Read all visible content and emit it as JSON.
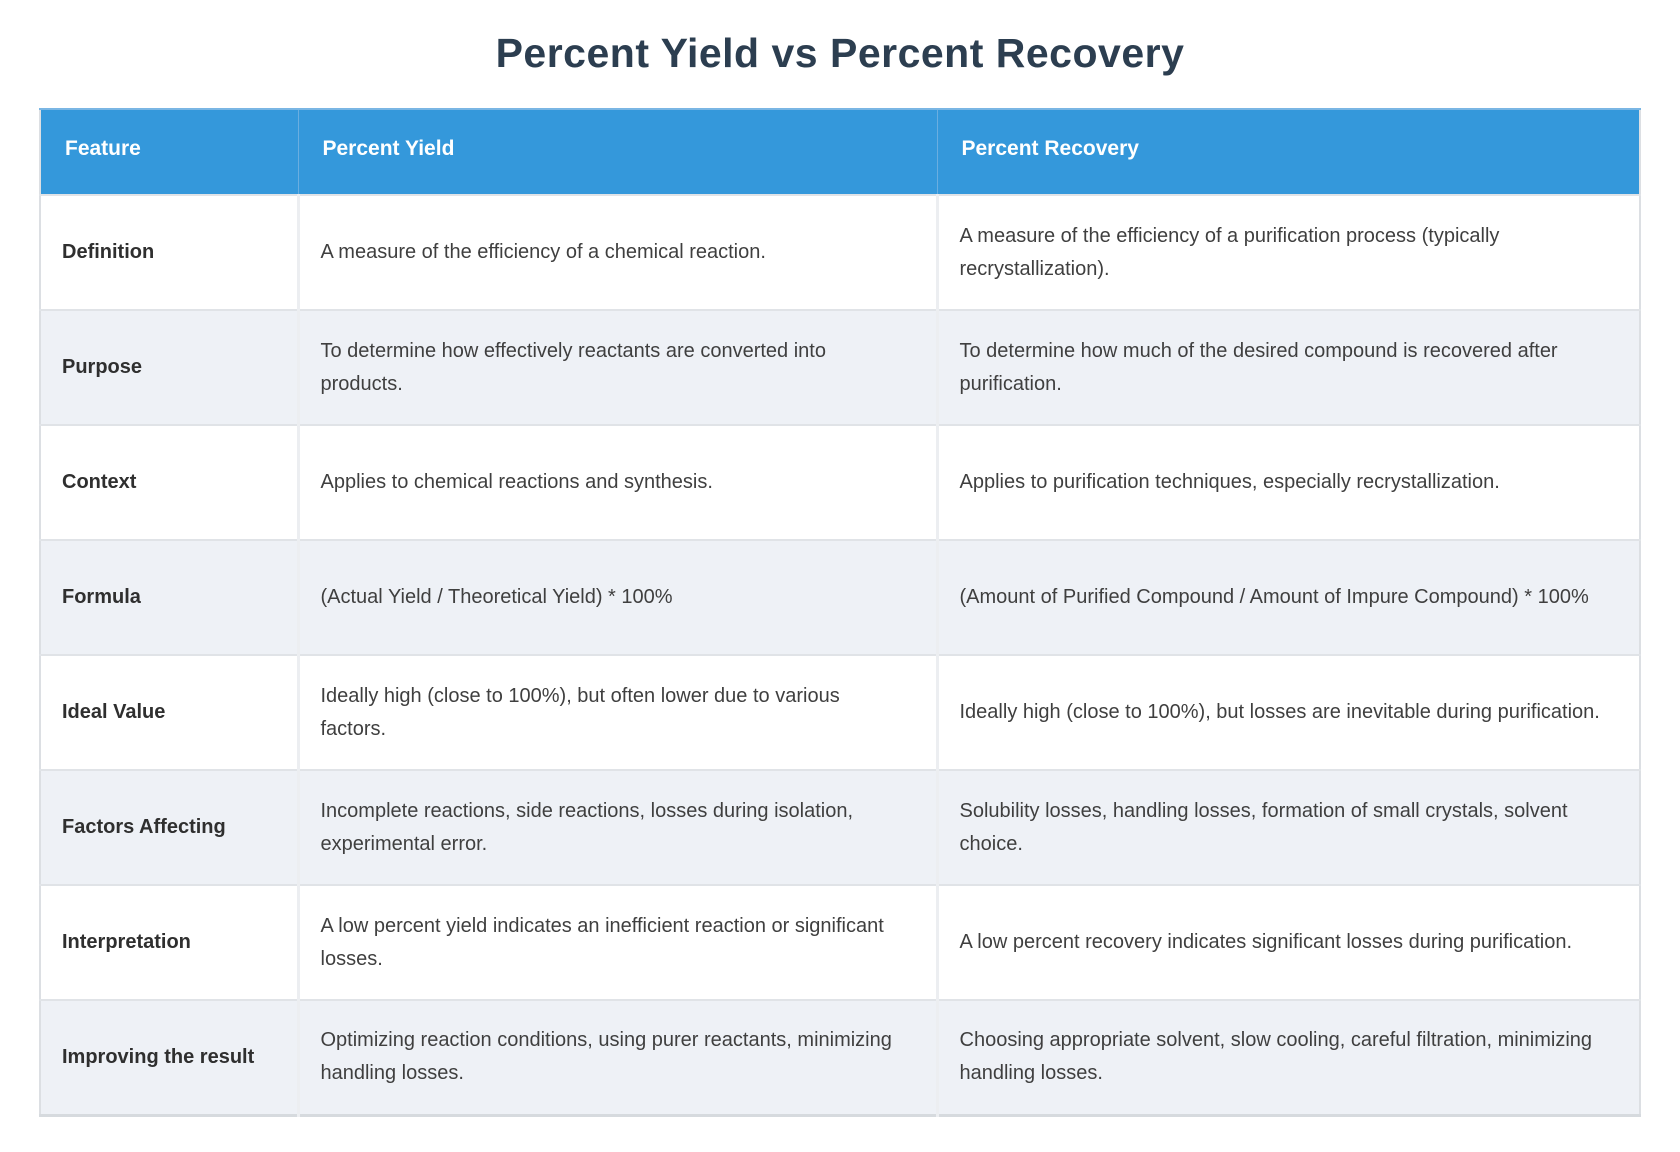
{
  "title": "Percent Yield vs Percent Recovery",
  "colors": {
    "header-bg": "#3498db",
    "title-color": "#2c3e50",
    "stripe-bg": "#eef1f6",
    "row-border": "#e0e3e7",
    "body-color": "#3f3f3f"
  },
  "table": {
    "headers": [
      "Feature",
      "Percent Yield",
      "Percent Recovery"
    ],
    "rows": [
      {
        "feature": "Definition",
        "yield": "A measure of the efficiency of a chemical reaction.",
        "recovery": "A measure of the efficiency of a purification process (typically recrystallization)."
      },
      {
        "feature": "Purpose",
        "yield": "To determine how effectively reactants are converted into products.",
        "recovery": "To determine how much of the desired compound is recovered after purification."
      },
      {
        "feature": "Context",
        "yield": "Applies to chemical reactions and synthesis.",
        "recovery": "Applies to purification techniques, especially recrystallization."
      },
      {
        "feature": "Formula",
        "yield": "(Actual Yield / Theoretical Yield) * 100%",
        "recovery": "(Amount of Purified Compound / Amount of Impure Compound) * 100%"
      },
      {
        "feature": "Ideal Value",
        "yield": "Ideally high (close to 100%), but often lower due to various factors.",
        "recovery": "Ideally high (close to 100%), but losses are inevitable during purification."
      },
      {
        "feature": "Factors Affecting",
        "yield": "Incomplete reactions, side reactions, losses during isolation, experimental error.",
        "recovery": "Solubility losses, handling losses, formation of small crystals, solvent choice."
      },
      {
        "feature": "Interpretation",
        "yield": "A low percent yield indicates an inefficient reaction or significant losses.",
        "recovery": "A low percent recovery indicates significant losses during purification."
      },
      {
        "feature": "Improving the result",
        "yield": "Optimizing reaction conditions, using purer reactants, minimizing handling losses.",
        "recovery": "Choosing appropriate solvent, slow cooling, careful filtration, minimizing handling losses."
      }
    ]
  }
}
